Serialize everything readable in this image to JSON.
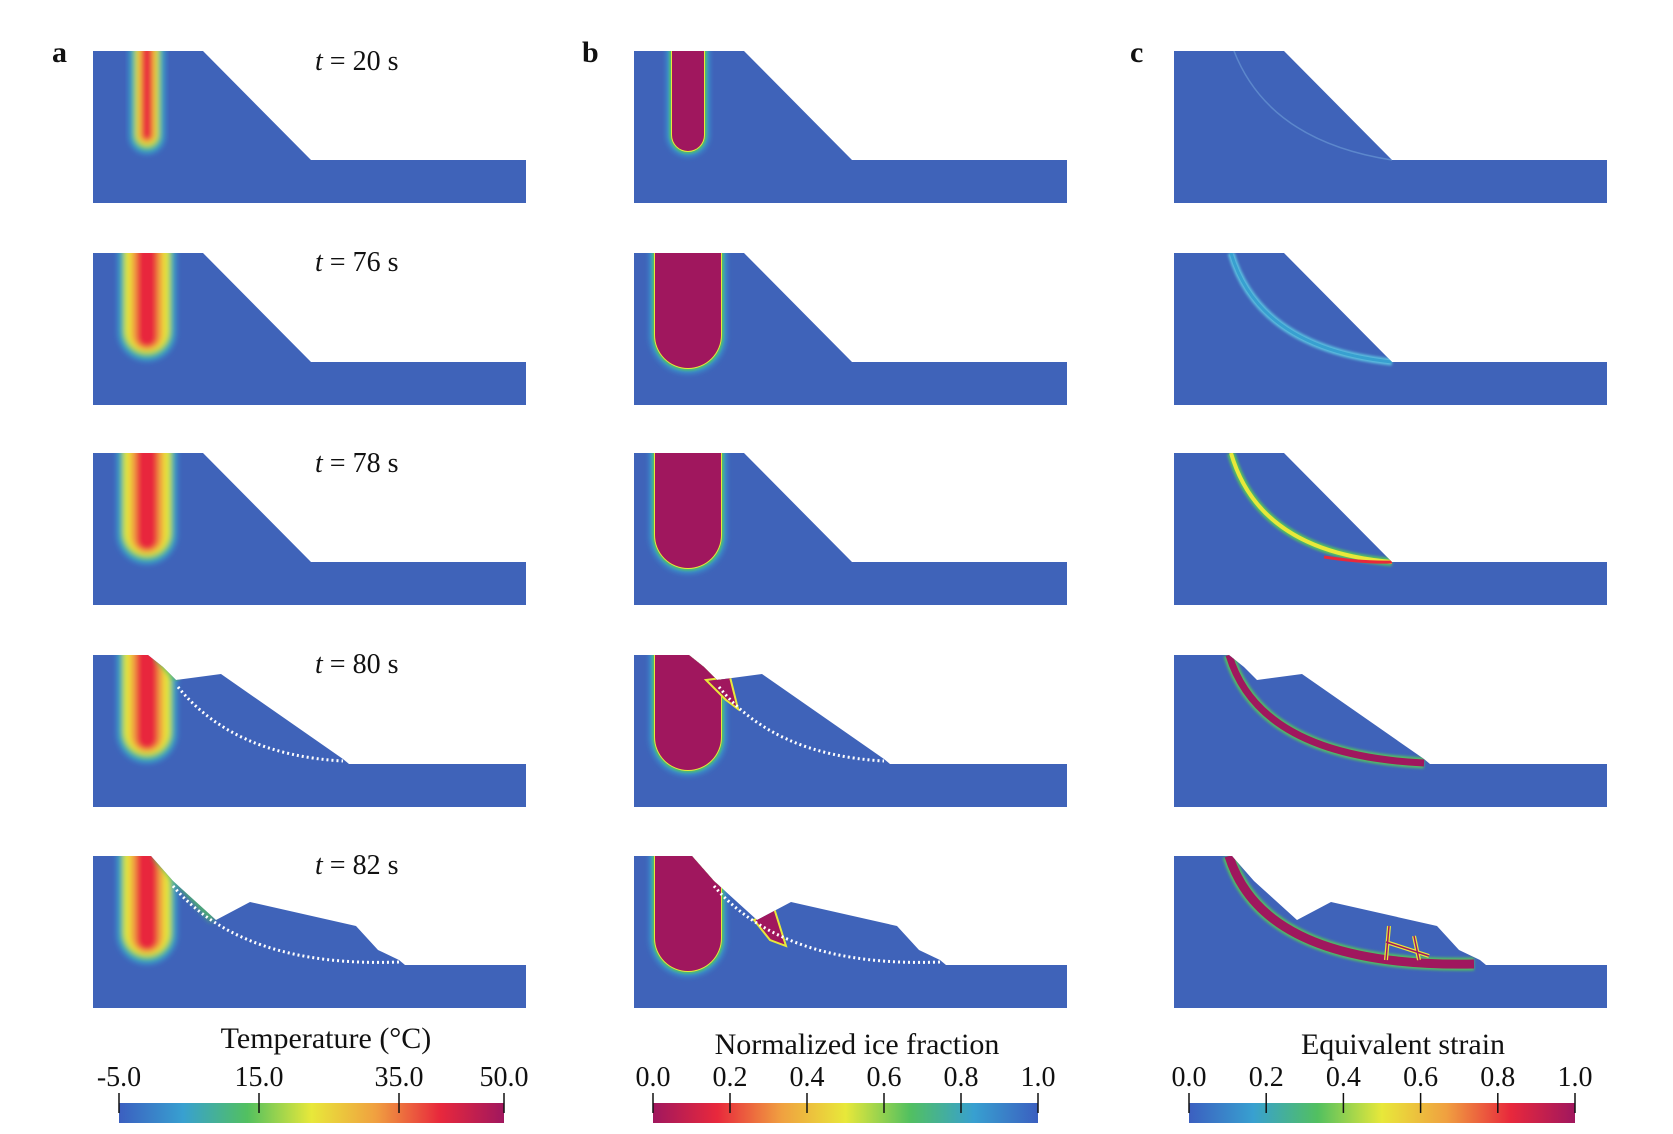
{
  "panels": [
    {
      "letter": "a",
      "field": "temperature"
    },
    {
      "letter": "b",
      "field": "ice"
    },
    {
      "letter": "c",
      "field": "strain"
    }
  ],
  "time_labels": [
    {
      "t": "t",
      "rest": " = 20 s"
    },
    {
      "t": "t",
      "rest": " = 76 s"
    },
    {
      "t": "t",
      "rest": " = 78 s"
    },
    {
      "t": "t",
      "rest": " = 80 s"
    },
    {
      "t": "t",
      "rest": " = 82 s"
    }
  ],
  "colorbars": [
    {
      "title": "Temperature (°C)",
      "ticks": [
        "-5.0",
        "15.0",
        "35.0",
        "50.0"
      ],
      "tick_values": [
        -5,
        15,
        35,
        50
      ],
      "range": [
        -5,
        50
      ],
      "colors": [
        "#3b5fc0",
        "#38a0d0",
        "#52c060",
        "#e8e83a",
        "#f0a040",
        "#e8283c",
        "#a0175e"
      ]
    },
    {
      "title": "Normalized ice fraction",
      "ticks": [
        "0.0",
        "0.2",
        "0.4",
        "0.6",
        "0.8",
        "1.0"
      ],
      "tick_values": [
        0,
        0.2,
        0.4,
        0.6,
        0.8,
        1.0
      ],
      "range": [
        0,
        1
      ],
      "colors": [
        "#a0175e",
        "#e8283c",
        "#f0a040",
        "#e8e83a",
        "#52c060",
        "#38a0d0",
        "#3b5fc0"
      ]
    },
    {
      "title": "Equivalent strain",
      "ticks": [
        "0.0",
        "0.2",
        "0.4",
        "0.6",
        "0.8",
        "1.0"
      ],
      "tick_values": [
        0,
        0.2,
        0.4,
        0.6,
        0.8,
        1.0
      ],
      "range": [
        0,
        1
      ],
      "colors": [
        "#3b5fc0",
        "#38a0d0",
        "#52c060",
        "#e8e83a",
        "#f0a040",
        "#e8283c",
        "#a0175e"
      ]
    }
  ],
  "colors": {
    "domain": "#3f63b9",
    "magenta": "#a0175e",
    "red": "#e8283c",
    "orange": "#f0a040",
    "yellow": "#e8e83a",
    "green": "#52c060",
    "cyan": "#38a0d0"
  }
}
